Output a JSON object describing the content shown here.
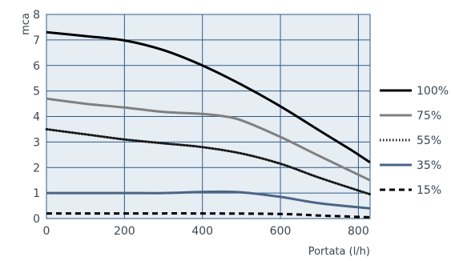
{
  "chart_data": {
    "type": "line",
    "title": "",
    "xlabel": "Portata (l/h)",
    "ylabel": "mca",
    "xlim": [
      0,
      830
    ],
    "ylim": [
      0,
      8
    ],
    "xticks": [
      0,
      200,
      400,
      600,
      800
    ],
    "yticks": [
      0,
      1,
      2,
      3,
      4,
      5,
      6,
      7,
      8
    ],
    "grid": true,
    "legend_position": "right",
    "series": [
      {
        "name": "100%",
        "color": "#000000",
        "dash": "solid",
        "points": [
          [
            0,
            7.3
          ],
          [
            100,
            7.15
          ],
          [
            200,
            6.98
          ],
          [
            300,
            6.6
          ],
          [
            400,
            6.0
          ],
          [
            500,
            5.25
          ],
          [
            600,
            4.4
          ],
          [
            700,
            3.45
          ],
          [
            780,
            2.7
          ],
          [
            830,
            2.2
          ]
        ]
      },
      {
        "name": "75%",
        "color": "#808080",
        "dash": "solid",
        "points": [
          [
            0,
            4.7
          ],
          [
            100,
            4.5
          ],
          [
            200,
            4.35
          ],
          [
            300,
            4.18
          ],
          [
            400,
            4.1
          ],
          [
            450,
            4.02
          ],
          [
            500,
            3.85
          ],
          [
            600,
            3.2
          ],
          [
            700,
            2.45
          ],
          [
            830,
            1.5
          ]
        ]
      },
      {
        "name": "55%",
        "color": "#1a1a1a",
        "dash": "dotted",
        "points": [
          [
            0,
            3.5
          ],
          [
            100,
            3.3
          ],
          [
            200,
            3.1
          ],
          [
            300,
            2.95
          ],
          [
            400,
            2.8
          ],
          [
            500,
            2.55
          ],
          [
            600,
            2.15
          ],
          [
            700,
            1.6
          ],
          [
            830,
            0.95
          ]
        ]
      },
      {
        "name": "35%",
        "color": "#4a6585",
        "dash": "solid",
        "points": [
          [
            0,
            1.0
          ],
          [
            200,
            1.0
          ],
          [
            300,
            1.0
          ],
          [
            420,
            1.05
          ],
          [
            500,
            1.03
          ],
          [
            600,
            0.85
          ],
          [
            700,
            0.6
          ],
          [
            830,
            0.4
          ]
        ]
      },
      {
        "name": "15%",
        "color": "#000000",
        "dash": "dashed",
        "points": [
          [
            0,
            0.2
          ],
          [
            200,
            0.2
          ],
          [
            400,
            0.2
          ],
          [
            600,
            0.18
          ],
          [
            700,
            0.12
          ],
          [
            830,
            0.05
          ]
        ]
      }
    ]
  }
}
